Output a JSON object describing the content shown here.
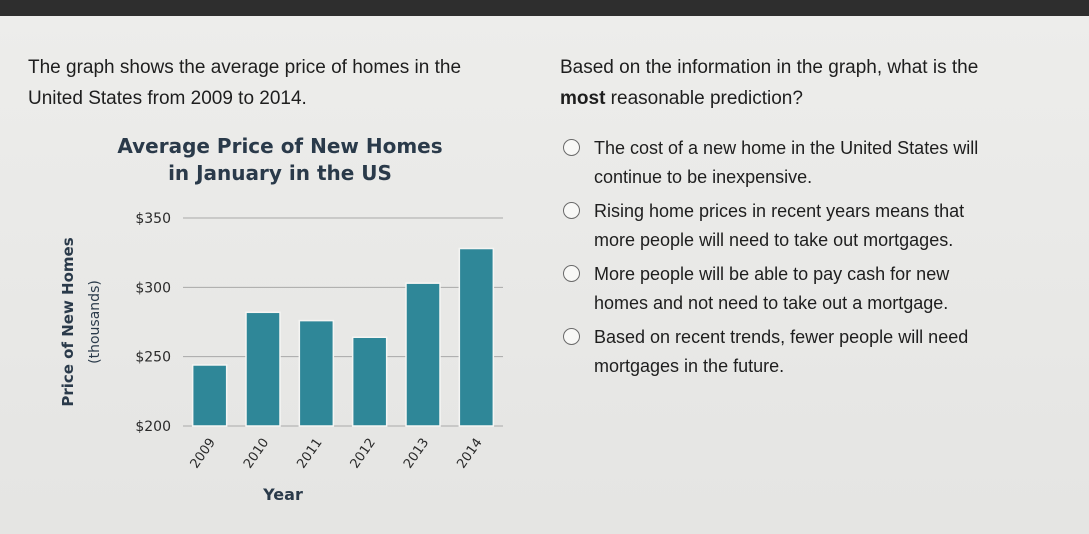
{
  "prompt": {
    "left_line1": "The graph shows the average price of homes in the",
    "left_line2": "United States from 2009 to 2014.",
    "right_line1": "Based on the information in the graph, what is the",
    "right_bold": "most",
    "right_rest": " reasonable prediction?"
  },
  "options": [
    {
      "line1": "The cost of a new home in the United States will",
      "line2": "continue to be inexpensive."
    },
    {
      "line1": "Rising home prices in recent years means that",
      "line2": "more people will need to take out mortgages."
    },
    {
      "line1": "More people will be able to pay cash for new",
      "line2": "homes and not need to take out a mortgage."
    },
    {
      "line1": "Based on recent trends, fewer people will need",
      "line2": "mortgages in the future."
    }
  ],
  "chart_data": {
    "type": "bar",
    "title_line1": "Average Price of New Homes",
    "title_line2": "in January in the US",
    "ylabel_line1": "Price of New Homes",
    "ylabel_line2": "(thousands)",
    "xlabel": "Year",
    "categories": [
      "2009",
      "2010",
      "2011",
      "2012",
      "2013",
      "2014"
    ],
    "values": [
      244,
      282,
      276,
      264,
      303,
      328
    ],
    "ylim": [
      200,
      350
    ],
    "yticks": [
      200,
      250,
      300,
      350
    ],
    "ytick_labels": [
      "$200",
      "$250",
      "$300",
      "$350"
    ],
    "grid": true,
    "bar_color": "#2f8798"
  }
}
